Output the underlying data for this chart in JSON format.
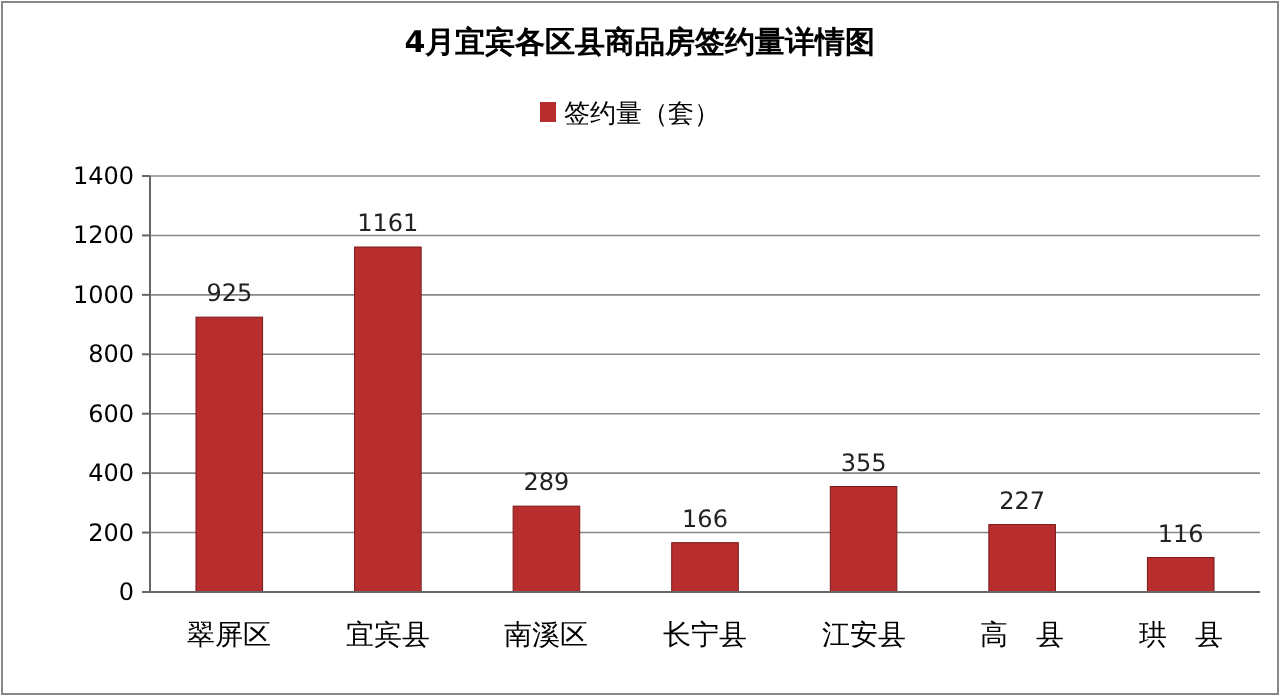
{
  "chart_data": {
    "type": "bar",
    "title": "4月宜宾各区县商品房签约量详情图",
    "categories": [
      "翠屏区",
      "宜宾县",
      "南溪区",
      "长宁县",
      "江安县",
      "高　县",
      "珙　县"
    ],
    "series": [
      {
        "name": "签约量（套）",
        "color": "#b82e2e",
        "values": [
          925,
          1161,
          289,
          166,
          355,
          227,
          116
        ]
      }
    ],
    "ylim": [
      0,
      1400
    ],
    "yticks": [
      0,
      200,
      400,
      600,
      800,
      1000,
      1200,
      1400
    ],
    "grid": "y",
    "legend": "top",
    "data_labels": true
  }
}
